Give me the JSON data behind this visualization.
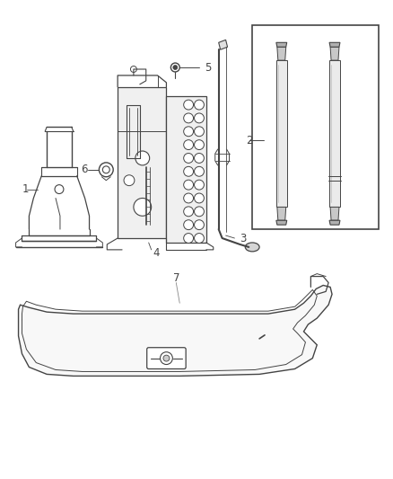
{
  "background_color": "#ffffff",
  "fig_width": 4.38,
  "fig_height": 5.33,
  "dpi": 100,
  "line_color": "#444444",
  "label_color": "#444444",
  "label_fontsize": 8.5
}
